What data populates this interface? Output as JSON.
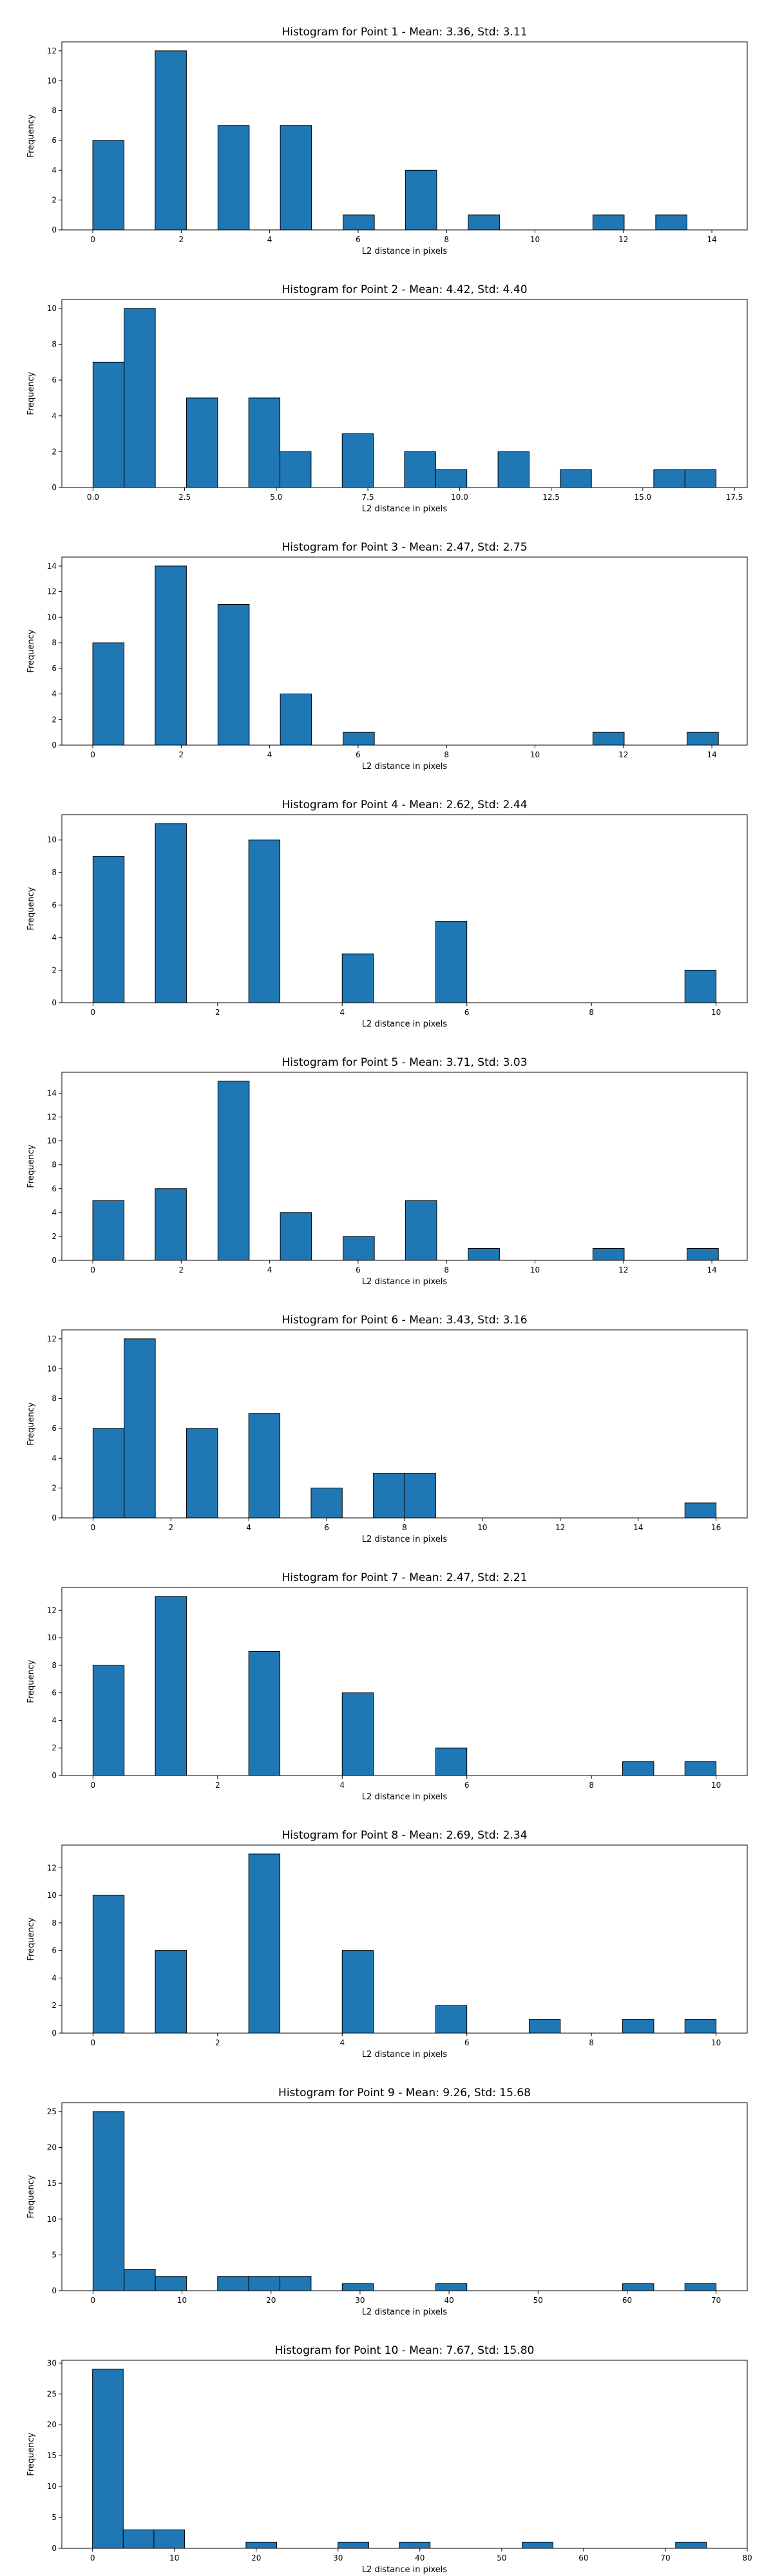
{
  "chart_data": [
    {
      "type": "bar",
      "title": "Histogram for Point 1 - Mean: 3.36, Std: 3.11",
      "xlabel": "L2 distance in pixels",
      "ylabel": "Frequency",
      "xlim": [
        -0.7,
        14.8
      ],
      "ylim": [
        0,
        12.6
      ],
      "xticks": [
        0,
        2,
        4,
        6,
        8,
        10,
        12,
        14
      ],
      "xtick_labels": [
        "0",
        "2",
        "4",
        "6",
        "8",
        "10",
        "12",
        "14"
      ],
      "yticks": [
        0,
        2,
        4,
        6,
        8,
        10,
        12
      ],
      "ytick_labels": [
        "0",
        "2",
        "4",
        "6",
        "8",
        "10",
        "12"
      ],
      "bin_width": 0.707,
      "x": [
        0.0,
        1.41,
        2.83,
        4.24,
        5.66,
        7.07,
        8.49,
        9.9,
        11.31,
        12.73
      ],
      "values": [
        6,
        12,
        7,
        7,
        1,
        4,
        1,
        0,
        1,
        1
      ]
    },
    {
      "type": "bar",
      "title": "Histogram for Point 2 - Mean: 4.42, Std: 4.40",
      "xlabel": "L2 distance in pixels",
      "ylabel": "Frequency",
      "xlim": [
        -0.85,
        17.85
      ],
      "ylim": [
        0,
        10.5
      ],
      "xticks": [
        0,
        2.5,
        5,
        7.5,
        10,
        12.5,
        15,
        17.5
      ],
      "xtick_labels": [
        "0.0",
        "2.5",
        "5.0",
        "7.5",
        "10.0",
        "12.5",
        "15.0",
        "17.5"
      ],
      "yticks": [
        0,
        2,
        4,
        6,
        8,
        10
      ],
      "ytick_labels": [
        "0",
        "2",
        "4",
        "6",
        "8",
        "10"
      ],
      "bin_width": 0.85,
      "x": [
        0.0,
        0.85,
        2.55,
        4.25,
        5.1,
        6.8,
        8.5,
        9.35,
        11.05,
        12.75,
        15.3,
        16.15
      ],
      "values": [
        7,
        10,
        5,
        5,
        2,
        3,
        2,
        1,
        2,
        1,
        1,
        1
      ]
    },
    {
      "type": "bar",
      "title": "Histogram for Point 3 - Mean: 2.47, Std: 2.75",
      "xlabel": "L2 distance in pixels",
      "ylabel": "Frequency",
      "xlim": [
        -0.7,
        14.8
      ],
      "ylim": [
        0,
        14.7
      ],
      "xticks": [
        0,
        2,
        4,
        6,
        8,
        10,
        12,
        14
      ],
      "xtick_labels": [
        "0",
        "2",
        "4",
        "6",
        "8",
        "10",
        "12",
        "14"
      ],
      "yticks": [
        0,
        2,
        4,
        6,
        8,
        10,
        12,
        14
      ],
      "ytick_labels": [
        "0",
        "2",
        "4",
        "6",
        "8",
        "10",
        "12",
        "14"
      ],
      "bin_width": 0.707,
      "x": [
        0.0,
        1.41,
        2.83,
        4.24,
        5.66,
        11.31,
        13.44
      ],
      "values": [
        8,
        14,
        11,
        4,
        1,
        1,
        1
      ]
    },
    {
      "type": "bar",
      "title": "Histogram for Point 4 - Mean: 2.62, Std: 2.44",
      "xlabel": "L2 distance in pixels",
      "ylabel": "Frequency",
      "xlim": [
        -0.5,
        10.5
      ],
      "ylim": [
        0,
        11.55
      ],
      "xticks": [
        0,
        2,
        4,
        6,
        8,
        10
      ],
      "xtick_labels": [
        "0",
        "2",
        "4",
        "6",
        "8",
        "10"
      ],
      "yticks": [
        0,
        2,
        4,
        6,
        8,
        10
      ],
      "ytick_labels": [
        "0",
        "2",
        "4",
        "6",
        "8",
        "10"
      ],
      "bin_width": 0.5,
      "x": [
        0.0,
        1.0,
        2.5,
        4.0,
        5.5,
        9.5
      ],
      "values": [
        9,
        11,
        10,
        3,
        5,
        2
      ]
    },
    {
      "type": "bar",
      "title": "Histogram for Point 5 - Mean: 3.71, Std: 3.03",
      "xlabel": "L2 distance in pixels",
      "ylabel": "Frequency",
      "xlim": [
        -0.7,
        14.8
      ],
      "ylim": [
        0,
        15.75
      ],
      "xticks": [
        0,
        2,
        4,
        6,
        8,
        10,
        12,
        14
      ],
      "xtick_labels": [
        "0",
        "2",
        "4",
        "6",
        "8",
        "10",
        "12",
        "14"
      ],
      "yticks": [
        0,
        2,
        4,
        6,
        8,
        10,
        12,
        14
      ],
      "ytick_labels": [
        "0",
        "2",
        "4",
        "6",
        "8",
        "10",
        "12",
        "14"
      ],
      "bin_width": 0.707,
      "x": [
        0.0,
        1.41,
        2.83,
        4.24,
        5.66,
        7.07,
        8.49,
        11.31,
        13.44
      ],
      "values": [
        5,
        6,
        15,
        4,
        2,
        5,
        1,
        1,
        1
      ]
    },
    {
      "type": "bar",
      "title": "Histogram for Point 6 - Mean: 3.43, Std: 3.16",
      "xlabel": "L2 distance in pixels",
      "ylabel": "Frequency",
      "xlim": [
        -0.8,
        16.8
      ],
      "ylim": [
        0,
        12.6
      ],
      "xticks": [
        0,
        2,
        4,
        6,
        8,
        10,
        12,
        14,
        16
      ],
      "xtick_labels": [
        "0",
        "2",
        "4",
        "6",
        "8",
        "10",
        "12",
        "14",
        "16"
      ],
      "yticks": [
        0,
        2,
        4,
        6,
        8,
        10,
        12
      ],
      "ytick_labels": [
        "0",
        "2",
        "4",
        "6",
        "8",
        "10",
        "12"
      ],
      "bin_width": 0.8,
      "x": [
        0.0,
        0.8,
        2.4,
        4.0,
        5.6,
        7.2,
        8.0,
        15.2
      ],
      "values": [
        6,
        12,
        6,
        7,
        2,
        3,
        3,
        1
      ]
    },
    {
      "type": "bar",
      "title": "Histogram for Point 7 - Mean: 2.47, Std: 2.21",
      "xlabel": "L2 distance in pixels",
      "ylabel": "Frequency",
      "xlim": [
        -0.5,
        10.5
      ],
      "ylim": [
        0,
        13.65
      ],
      "xticks": [
        0,
        2,
        4,
        6,
        8,
        10
      ],
      "xtick_labels": [
        "0",
        "2",
        "4",
        "6",
        "8",
        "10"
      ],
      "yticks": [
        0,
        2,
        4,
        6,
        8,
        10,
        12
      ],
      "ytick_labels": [
        "0",
        "2",
        "4",
        "6",
        "8",
        "10",
        "12"
      ],
      "bin_width": 0.5,
      "x": [
        0.0,
        1.0,
        2.5,
        4.0,
        5.5,
        8.5,
        9.5
      ],
      "values": [
        8,
        13,
        9,
        6,
        2,
        1,
        1
      ]
    },
    {
      "type": "bar",
      "title": "Histogram for Point 8 - Mean: 2.69, Std: 2.34",
      "xlabel": "L2 distance in pixels",
      "ylabel": "Frequency",
      "xlim": [
        -0.5,
        10.5
      ],
      "ylim": [
        0,
        13.65
      ],
      "xticks": [
        0,
        2,
        4,
        6,
        8,
        10
      ],
      "xtick_labels": [
        "0",
        "2",
        "4",
        "6",
        "8",
        "10"
      ],
      "yticks": [
        0,
        2,
        4,
        6,
        8,
        10,
        12
      ],
      "ytick_labels": [
        "0",
        "2",
        "4",
        "6",
        "8",
        "10",
        "12"
      ],
      "bin_width": 0.5,
      "x": [
        0.0,
        1.0,
        2.5,
        4.0,
        5.5,
        7.0,
        8.5,
        9.5
      ],
      "values": [
        10,
        6,
        13,
        6,
        2,
        1,
        1,
        1
      ]
    },
    {
      "type": "bar",
      "title": "Histogram for Point 9 - Mean: 9.26, Std: 15.68",
      "xlabel": "L2 distance in pixels",
      "ylabel": "Frequency",
      "xlim": [
        -3.5,
        73.5
      ],
      "ylim": [
        0,
        26.25
      ],
      "xticks": [
        0,
        10,
        20,
        30,
        40,
        50,
        60,
        70
      ],
      "xtick_labels": [
        "0",
        "10",
        "20",
        "30",
        "40",
        "50",
        "60",
        "70"
      ],
      "yticks": [
        0,
        5,
        10,
        15,
        20,
        25
      ],
      "ytick_labels": [
        "0",
        "5",
        "10",
        "15",
        "20",
        "25"
      ],
      "bin_width": 3.5,
      "x": [
        0.0,
        3.5,
        7.0,
        14.0,
        17.5,
        21.0,
        28.0,
        38.5,
        59.5,
        66.5
      ],
      "values": [
        25,
        3,
        2,
        2,
        2,
        2,
        1,
        1,
        1,
        1
      ]
    },
    {
      "type": "bar",
      "title": "Histogram for Point 10 - Mean: 7.67, Std: 15.80",
      "xlabel": "L2 distance in pixels",
      "ylabel": "Frequency",
      "xlim": [
        -3.75,
        80.0
      ],
      "ylim": [
        0,
        30.45
      ],
      "xticks": [
        0,
        10,
        20,
        30,
        40,
        50,
        60,
        70,
        80
      ],
      "xtick_labels": [
        "0",
        "10",
        "20",
        "30",
        "40",
        "50",
        "60",
        "70",
        "80"
      ],
      "yticks": [
        0,
        5,
        10,
        15,
        20,
        25,
        30
      ],
      "ytick_labels": [
        "0",
        "5",
        "10",
        "15",
        "20",
        "25",
        "30"
      ],
      "bin_width": 3.75,
      "x": [
        0.0,
        3.75,
        7.5,
        18.75,
        30.0,
        37.5,
        52.5,
        71.25
      ],
      "values": [
        29,
        3,
        3,
        1,
        1,
        1,
        1,
        1
      ]
    }
  ]
}
